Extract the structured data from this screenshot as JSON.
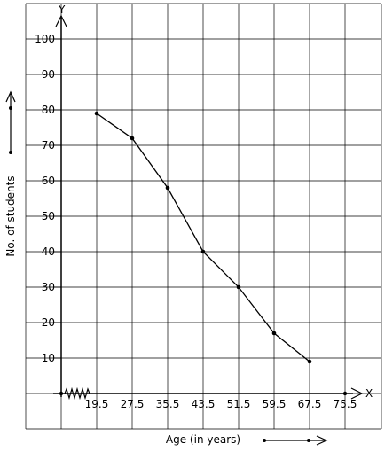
{
  "chart_data": {
    "type": "line",
    "title": "",
    "xlabel": "Age (in years)",
    "ylabel": "No. of students",
    "x_axis_letter": "X",
    "y_axis_letter": "Y",
    "x_tick_labels": [
      "19.5",
      "27.5",
      "35.5",
      "43.5",
      "51.5",
      "59.5",
      "67.5",
      "75.5"
    ],
    "y_tick_labels": [
      "10",
      "20",
      "30",
      "40",
      "50",
      "60",
      "70",
      "80",
      "90",
      "100"
    ],
    "y_ticks": [
      10,
      20,
      30,
      40,
      50,
      60,
      70,
      80,
      90,
      100
    ],
    "ylim": [
      -10,
      110
    ],
    "grid": true,
    "x_axis_break": true,
    "series": [
      {
        "x": [
          19.5,
          27.5,
          35.5,
          43.5,
          51.5,
          59.5,
          67.5
        ],
        "y": [
          79,
          72,
          58,
          40,
          30,
          17,
          9
        ]
      }
    ]
  }
}
